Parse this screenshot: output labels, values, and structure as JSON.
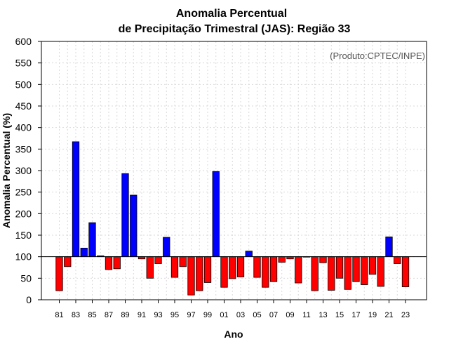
{
  "chart_data": {
    "type": "bar",
    "title": "Anomalia Percentual",
    "subtitle": "de Precipitação Trimestral (JAS): Região 33",
    "xlabel": "Ano",
    "ylabel": "Anomalia Percentual (%)",
    "credit": "(Produto:CPTEC/INPE)",
    "ylim": [
      0,
      600
    ],
    "yticks": [
      0,
      50,
      100,
      150,
      200,
      250,
      300,
      350,
      400,
      450,
      500,
      550,
      600
    ],
    "baseline": 100,
    "grid": true,
    "colors": {
      "above": "#0000ff",
      "below": "#ff0000"
    },
    "categories": [
      "81",
      "82",
      "83",
      "84",
      "85",
      "86",
      "87",
      "88",
      "89",
      "90",
      "91",
      "92",
      "93",
      "94",
      "95",
      "96",
      "97",
      "98",
      "99",
      "00",
      "01",
      "02",
      "03",
      "04",
      "05",
      "06",
      "07",
      "08",
      "09",
      "10",
      "11",
      "12",
      "13",
      "14",
      "15",
      "16",
      "17",
      "18",
      "19",
      "20",
      "21",
      "22",
      "23"
    ],
    "xtick_labels": [
      "81",
      "83",
      "85",
      "87",
      "89",
      "91",
      "93",
      "95",
      "97",
      "99",
      "01",
      "03",
      "05",
      "07",
      "09",
      "11",
      "13",
      "15",
      "17",
      "19",
      "21",
      "23"
    ],
    "values": [
      21,
      77,
      367,
      120,
      179,
      102,
      70,
      72,
      293,
      243,
      95,
      50,
      84,
      145,
      52,
      77,
      11,
      21,
      40,
      298,
      29,
      49,
      53,
      113,
      52,
      29,
      42,
      87,
      95,
      39,
      99,
      21,
      86,
      22,
      50,
      24,
      42,
      35,
      59,
      31,
      146,
      84,
      30
    ]
  }
}
